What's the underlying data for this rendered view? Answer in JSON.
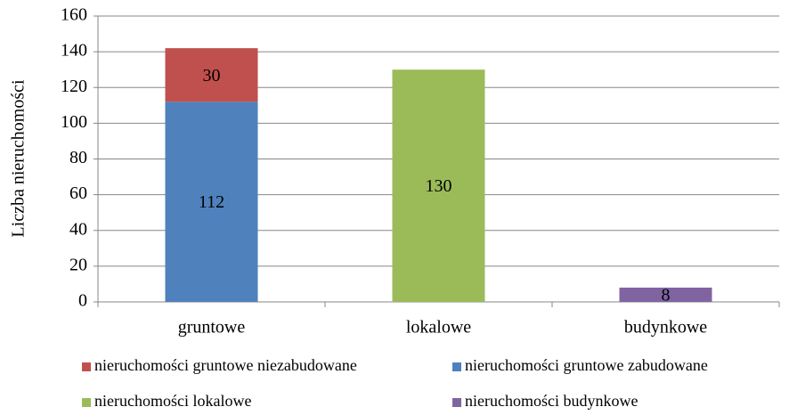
{
  "chart_data": {
    "type": "stacked_bar",
    "y_label": "Liczba nieruchomości",
    "categories": [
      "gruntowe",
      "lokalowe",
      "budynkowe"
    ],
    "series": [
      {
        "name": "nieruchomości gruntowe niezabudowane",
        "color": "#c0504d",
        "values": [
          30,
          null,
          null
        ]
      },
      {
        "name": "nieruchomości gruntowe zabudowane",
        "color": "#4f81bd",
        "values": [
          112,
          null,
          null
        ]
      },
      {
        "name": "nieruchomości lokalowe",
        "color": "#9bbb59",
        "values": [
          null,
          130,
          null
        ]
      },
      {
        "name": "nieruchomości budynkowe",
        "color": "#8064a2",
        "values": [
          null,
          null,
          8
        ]
      }
    ],
    "ylim": [
      0,
      160
    ],
    "yticks": [
      0,
      20,
      40,
      60,
      80,
      100,
      120,
      140,
      160
    ],
    "grid": true,
    "legend": "bottom"
  }
}
